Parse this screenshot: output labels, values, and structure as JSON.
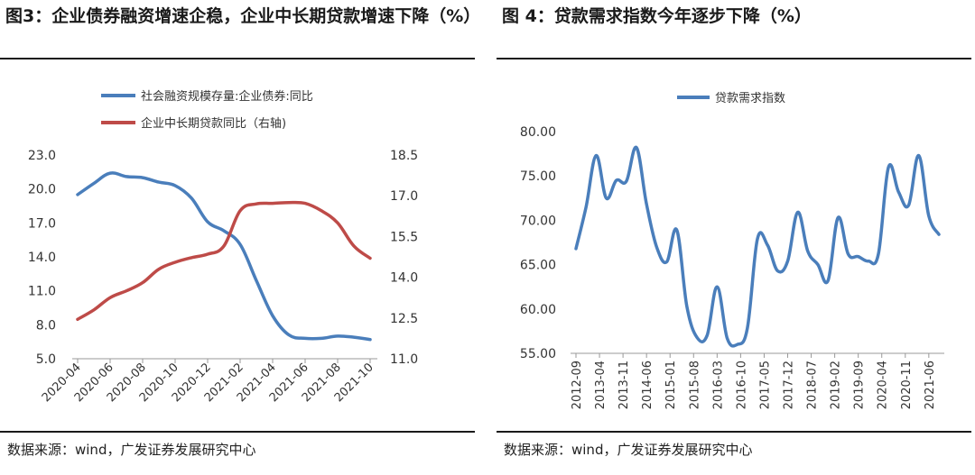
{
  "figures": [
    {
      "title": "图3：企业债券融资增速企稳，企业中长期贷款增速下降（%）",
      "source": "数据来源：wind，广发证券发展研究中心"
    },
    {
      "title": "图 4：贷款需求指数今年逐步下降（%）",
      "source": "数据来源：wind，广发证券发展研究中心"
    }
  ],
  "chart_data": [
    {
      "type": "line",
      "title": "图3：企业债券融资增速企稳，企业中长期贷款增速下降（%）",
      "categories": [
        "2020-04",
        "2020-05",
        "2020-06",
        "2020-07",
        "2020-08",
        "2020-09",
        "2020-10",
        "2020-11",
        "2020-12",
        "2021-01",
        "2021-02",
        "2021-03",
        "2021-04",
        "2021-05",
        "2021-06",
        "2021-07",
        "2021-08",
        "2021-09",
        "2021-10"
      ],
      "x_tick_labels": [
        "2020-04",
        "2020-06",
        "2020-08",
        "2020-10",
        "2020-12",
        "2021-02",
        "2021-04",
        "2021-06",
        "2021-08",
        "2021-10"
      ],
      "series": [
        {
          "name": "社会融资规模存量:企业债券:同比",
          "axis": "left",
          "color": "#4a7ebb",
          "values": [
            19.5,
            20.5,
            21.4,
            21.1,
            21.0,
            20.6,
            20.3,
            19.2,
            17.1,
            16.3,
            15.1,
            11.9,
            8.8,
            7.1,
            6.8,
            6.8,
            7.0,
            6.9,
            6.7
          ]
        },
        {
          "name": "企业中长期贷款同比（右轴)",
          "axis": "right",
          "color": "#be4b48",
          "values": [
            12.45,
            12.8,
            13.25,
            13.5,
            13.8,
            14.3,
            14.55,
            14.72,
            14.85,
            15.15,
            16.45,
            16.7,
            16.72,
            16.75,
            16.72,
            16.45,
            16.0,
            15.15,
            14.7
          ]
        }
      ],
      "y_left": {
        "ticks": [
          "5.0",
          "8.0",
          "11.0",
          "14.0",
          "17.0",
          "20.0",
          "23.0"
        ],
        "lim": [
          5.0,
          23.0
        ]
      },
      "y_right": {
        "ticks": [
          "11.0",
          "12.5",
          "14.0",
          "15.5",
          "17.0",
          "18.5"
        ],
        "lim": [
          11.0,
          18.5
        ]
      },
      "legend_position": "top",
      "grid": false
    },
    {
      "type": "line",
      "title": "图 4：贷款需求指数今年逐步下降（%）",
      "series": [
        {
          "name": "贷款需求指数",
          "color": "#4a7ebb",
          "points": [
            [
              "2012-09",
              66.8
            ],
            [
              "2012-12",
              71.5
            ],
            [
              "2013-03",
              77.3
            ],
            [
              "2013-06",
              72.5
            ],
            [
              "2013-09",
              74.5
            ],
            [
              "2013-12",
              74.4
            ],
            [
              "2014-03",
              78.2
            ],
            [
              "2014-06",
              71.8
            ],
            [
              "2014-09",
              67.0
            ],
            [
              "2014-12",
              65.3
            ],
            [
              "2015-03",
              68.9
            ],
            [
              "2015-06",
              60.3
            ],
            [
              "2015-09",
              56.8
            ],
            [
              "2015-12",
              57.0
            ],
            [
              "2016-03",
              62.5
            ],
            [
              "2016-06",
              56.7
            ],
            [
              "2016-09",
              56.0
            ],
            [
              "2016-12",
              57.8
            ],
            [
              "2017-03",
              67.9
            ],
            [
              "2017-06",
              67.2
            ],
            [
              "2017-09",
              64.3
            ],
            [
              "2017-12",
              65.4
            ],
            [
              "2018-03",
              70.9
            ],
            [
              "2018-06",
              66.5
            ],
            [
              "2018-09",
              65.0
            ],
            [
              "2018-12",
              63.2
            ],
            [
              "2019-03",
              70.3
            ],
            [
              "2019-06",
              66.2
            ],
            [
              "2019-09",
              65.9
            ],
            [
              "2019-12",
              65.4
            ],
            [
              "2020-03",
              66.2
            ],
            [
              "2020-06",
              76.0
            ],
            [
              "2020-09",
              73.2
            ],
            [
              "2020-12",
              71.7
            ],
            [
              "2021-03",
              77.3
            ],
            [
              "2021-06",
              70.5
            ],
            [
              "2021-09",
              68.4
            ]
          ]
        }
      ],
      "x_tick_labels": [
        "2012-09",
        "2013-04",
        "2013-11",
        "2014-06",
        "2015-01",
        "2015-08",
        "2016-03",
        "2016-10",
        "2017-05",
        "2017-12",
        "2018-07",
        "2019-02",
        "2019-09",
        "2020-04",
        "2020-11",
        "2021-06"
      ],
      "y": {
        "ticks": [
          "55.00",
          "60.00",
          "65.00",
          "70.00",
          "75.00",
          "80.00"
        ],
        "lim": [
          55.0,
          80.0
        ]
      },
      "legend_position": "top",
      "grid": false
    }
  ]
}
